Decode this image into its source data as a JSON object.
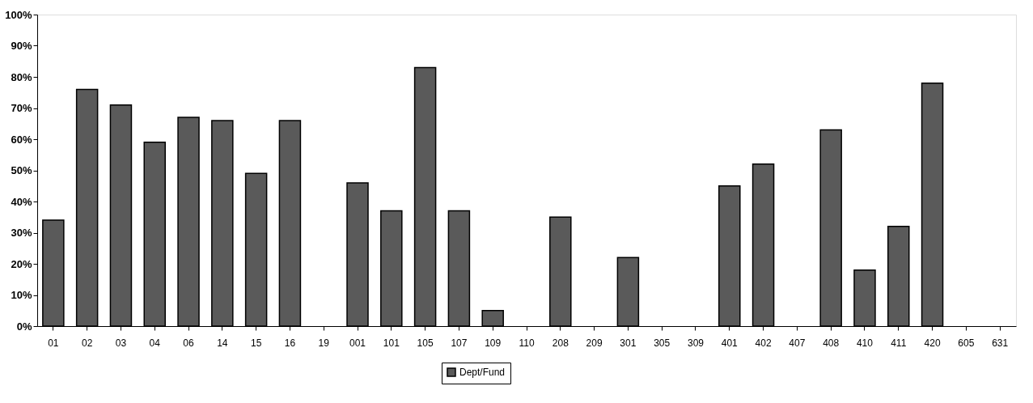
{
  "chart_data": {
    "type": "bar",
    "categories": [
      "01",
      "02",
      "03",
      "04",
      "06",
      "14",
      "15",
      "16",
      "19",
      "001",
      "101",
      "105",
      "107",
      "109",
      "110",
      "208",
      "209",
      "301",
      "305",
      "309",
      "401",
      "402",
      "407",
      "408",
      "410",
      "411",
      "420",
      "605",
      "631"
    ],
    "series": [
      {
        "name": "Dept/Fund",
        "color": "#5a5a5a",
        "values": [
          34,
          76,
          71,
          59,
          67,
          66,
          49,
          66,
          null,
          46,
          37,
          83,
          37,
          5,
          null,
          35,
          null,
          22,
          null,
          null,
          45,
          52,
          null,
          63,
          18,
          32,
          78,
          null,
          null
        ]
      }
    ],
    "ylim": [
      0,
      100
    ],
    "yticks": [
      {
        "value": 0,
        "label": "0%"
      },
      {
        "value": 10,
        "label": "10%"
      },
      {
        "value": 20,
        "label": "20%"
      },
      {
        "value": 30,
        "label": "30%"
      },
      {
        "value": 40,
        "label": "40%"
      },
      {
        "value": 50,
        "label": "50%"
      },
      {
        "value": 60,
        "label": "60%"
      },
      {
        "value": 70,
        "label": "70%"
      },
      {
        "value": 80,
        "label": "80%"
      },
      {
        "value": 90,
        "label": "90%"
      },
      {
        "value": 100,
        "label": "100%"
      }
    ],
    "grid": false,
    "legend": "bottom"
  }
}
